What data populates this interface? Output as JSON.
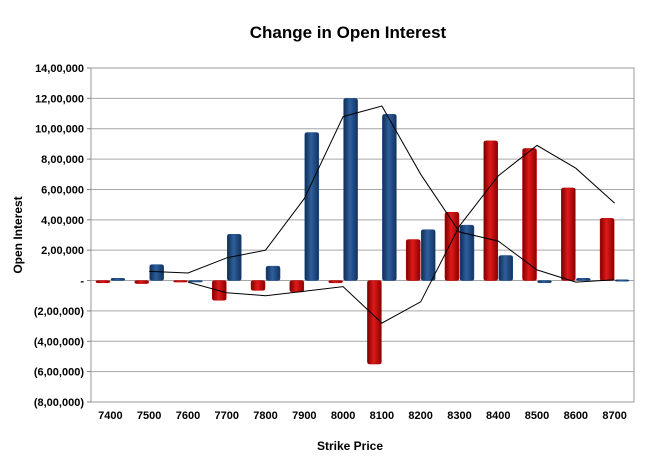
{
  "chart_data": {
    "type": "bar",
    "title": "Change in Open Interest",
    "xlabel": "Strike Price",
    "ylabel": "Open Interest",
    "categories": [
      "7400",
      "7500",
      "7600",
      "7700",
      "7800",
      "7900",
      "8000",
      "8100",
      "8200",
      "8300",
      "8400",
      "8500",
      "8600",
      "8700"
    ],
    "y_tick_labels": [
      "(8,00,000)",
      "(6,00,000)",
      "(4,00,000)",
      "(2,00,000)",
      "-",
      "2,00,000",
      "4,00,000",
      "6,00,000",
      "8,00,000",
      "10,00,000",
      "12,00,000",
      "14,00,000"
    ],
    "ylim": [
      -800000,
      1400000
    ],
    "y_step": 200000,
    "grid": true,
    "series": [
      {
        "kind": "bar",
        "color": "#c00000",
        "values": [
          -15000,
          -20000,
          -10000,
          -130000,
          -65000,
          -75000,
          -15000,
          -550000,
          270000,
          450000,
          920000,
          870000,
          610000,
          410000
        ]
      },
      {
        "kind": "bar",
        "color": "#1f4e8a",
        "values": [
          15000,
          105000,
          -5000,
          305000,
          95000,
          975000,
          1200000,
          1095000,
          335000,
          365000,
          165000,
          -15000,
          15000,
          5000
        ]
      },
      {
        "kind": "line",
        "color": "#000000",
        "values": [
          null,
          null,
          -10000,
          -80000,
          -100000,
          -70000,
          -40000,
          -280000,
          -140000,
          360000,
          690000,
          890000,
          740000,
          510000
        ]
      },
      {
        "kind": "line",
        "color": "#000000",
        "values": [
          null,
          60000,
          50000,
          150000,
          200000,
          540000,
          1080000,
          1150000,
          700000,
          320000,
          260000,
          70000,
          -10000,
          5000
        ]
      }
    ]
  }
}
